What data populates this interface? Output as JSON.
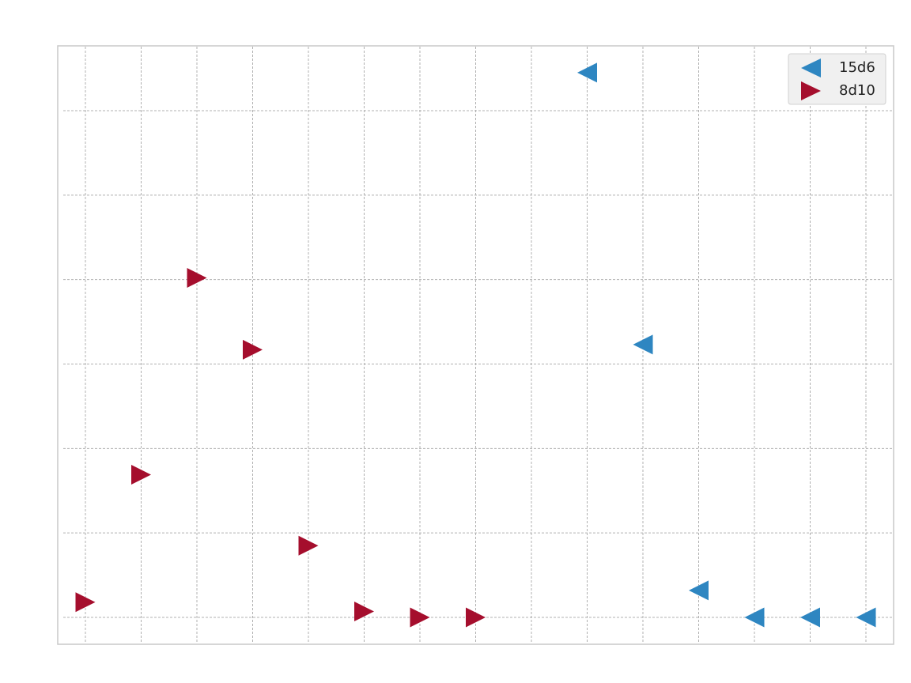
{
  "chart_data": {
    "type": "scatter",
    "title": "",
    "xlabel": "",
    "ylabel": "",
    "grid": true,
    "legend_position": "top-right",
    "xlim": [
      -0.5,
      14.5
    ],
    "ylim": [
      -0.5,
      6.5
    ],
    "x_gridlines": [
      0,
      1,
      2,
      3,
      4,
      5,
      6,
      7,
      8,
      9,
      10,
      11,
      12,
      13,
      14
    ],
    "y_gridlines": [
      0,
      1,
      2,
      3,
      4,
      5,
      6
    ],
    "series": [
      {
        "name": "15d6",
        "marker": "triangle-left",
        "color": "#2E86C1",
        "points": [
          {
            "x": 9,
            "y": 6.45
          },
          {
            "x": 10,
            "y": 3.23
          },
          {
            "x": 11,
            "y": 0.32
          },
          {
            "x": 12,
            "y": 0.0
          },
          {
            "x": 13,
            "y": 0.0
          },
          {
            "x": 14,
            "y": 0.0
          }
        ]
      },
      {
        "name": "8d10",
        "marker": "triangle-right",
        "color": "#A50E2D",
        "points": [
          {
            "x": 0,
            "y": 0.18
          },
          {
            "x": 1,
            "y": 1.69
          },
          {
            "x": 2,
            "y": 4.02
          },
          {
            "x": 3,
            "y": 3.17
          },
          {
            "x": 4,
            "y": 0.85
          },
          {
            "x": 5,
            "y": 0.07
          },
          {
            "x": 6,
            "y": 0.0
          },
          {
            "x": 7,
            "y": 0.0
          }
        ]
      }
    ]
  }
}
